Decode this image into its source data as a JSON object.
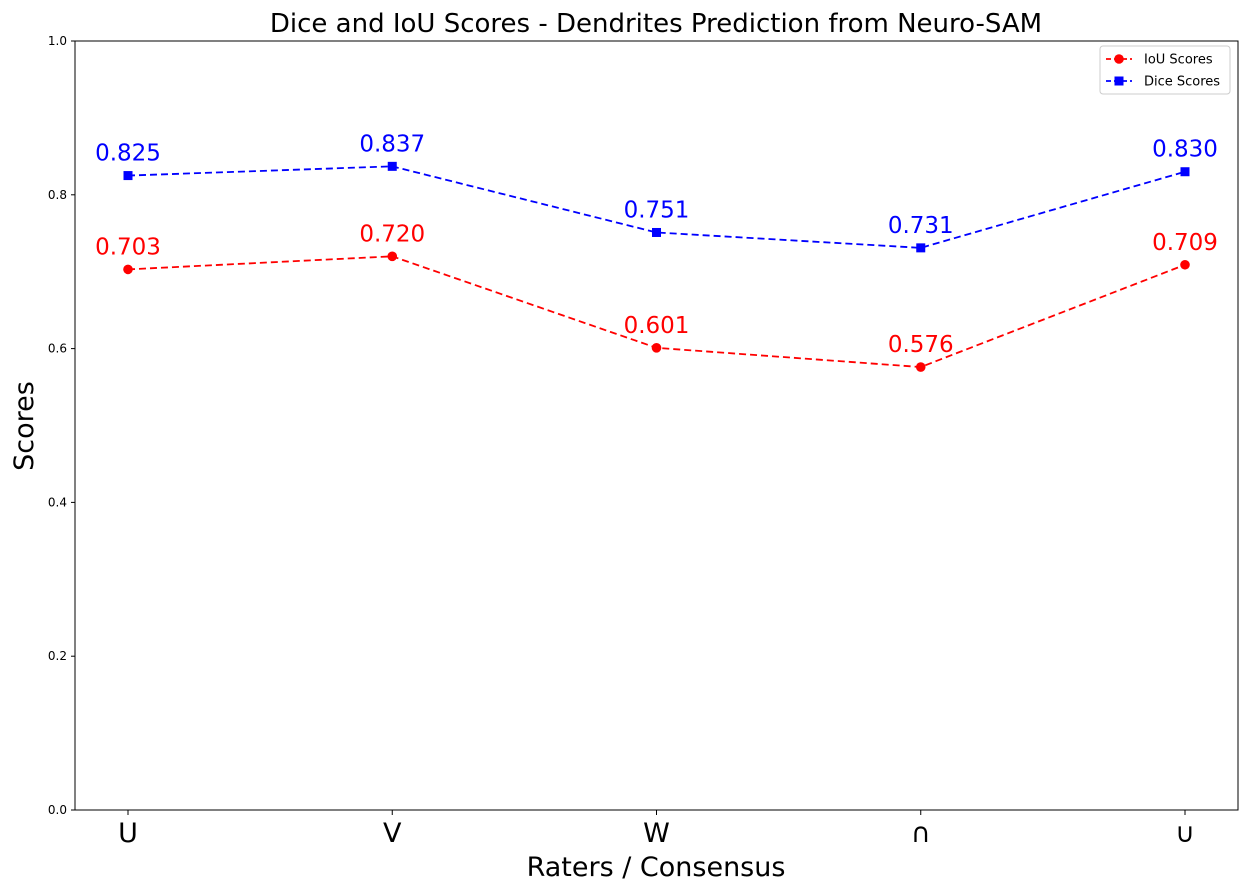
{
  "chart_data": {
    "type": "line",
    "title": "Dice and IoU Scores - Dendrites Prediction from Neuro-SAM",
    "xlabel": "Raters / Consensus",
    "ylabel": "Scores",
    "categories": [
      "U",
      "V",
      "W",
      "∩",
      "∪"
    ],
    "ylim": [
      0,
      1
    ],
    "yticks": [
      "0.0",
      "0.2",
      "0.4",
      "0.6",
      "0.8",
      "1.0"
    ],
    "ytick_values": [
      0,
      0.2,
      0.4,
      0.6,
      0.8,
      1.0
    ],
    "grid": false,
    "legend_position": "top-right",
    "series": [
      {
        "name": "IoU Scores",
        "color": "#ff0000",
        "marker": "circle",
        "line_style": "dashed",
        "values": [
          0.703,
          0.72,
          0.601,
          0.576,
          0.709
        ],
        "labels": [
          "0.703",
          "0.720",
          "0.601",
          "0.576",
          "0.709"
        ]
      },
      {
        "name": "Dice Scores",
        "color": "#0000ff",
        "marker": "square",
        "line_style": "dashed",
        "values": [
          0.825,
          0.837,
          0.751,
          0.731,
          0.83
        ],
        "labels": [
          "0.825",
          "0.837",
          "0.751",
          "0.731",
          "0.830"
        ]
      }
    ]
  }
}
